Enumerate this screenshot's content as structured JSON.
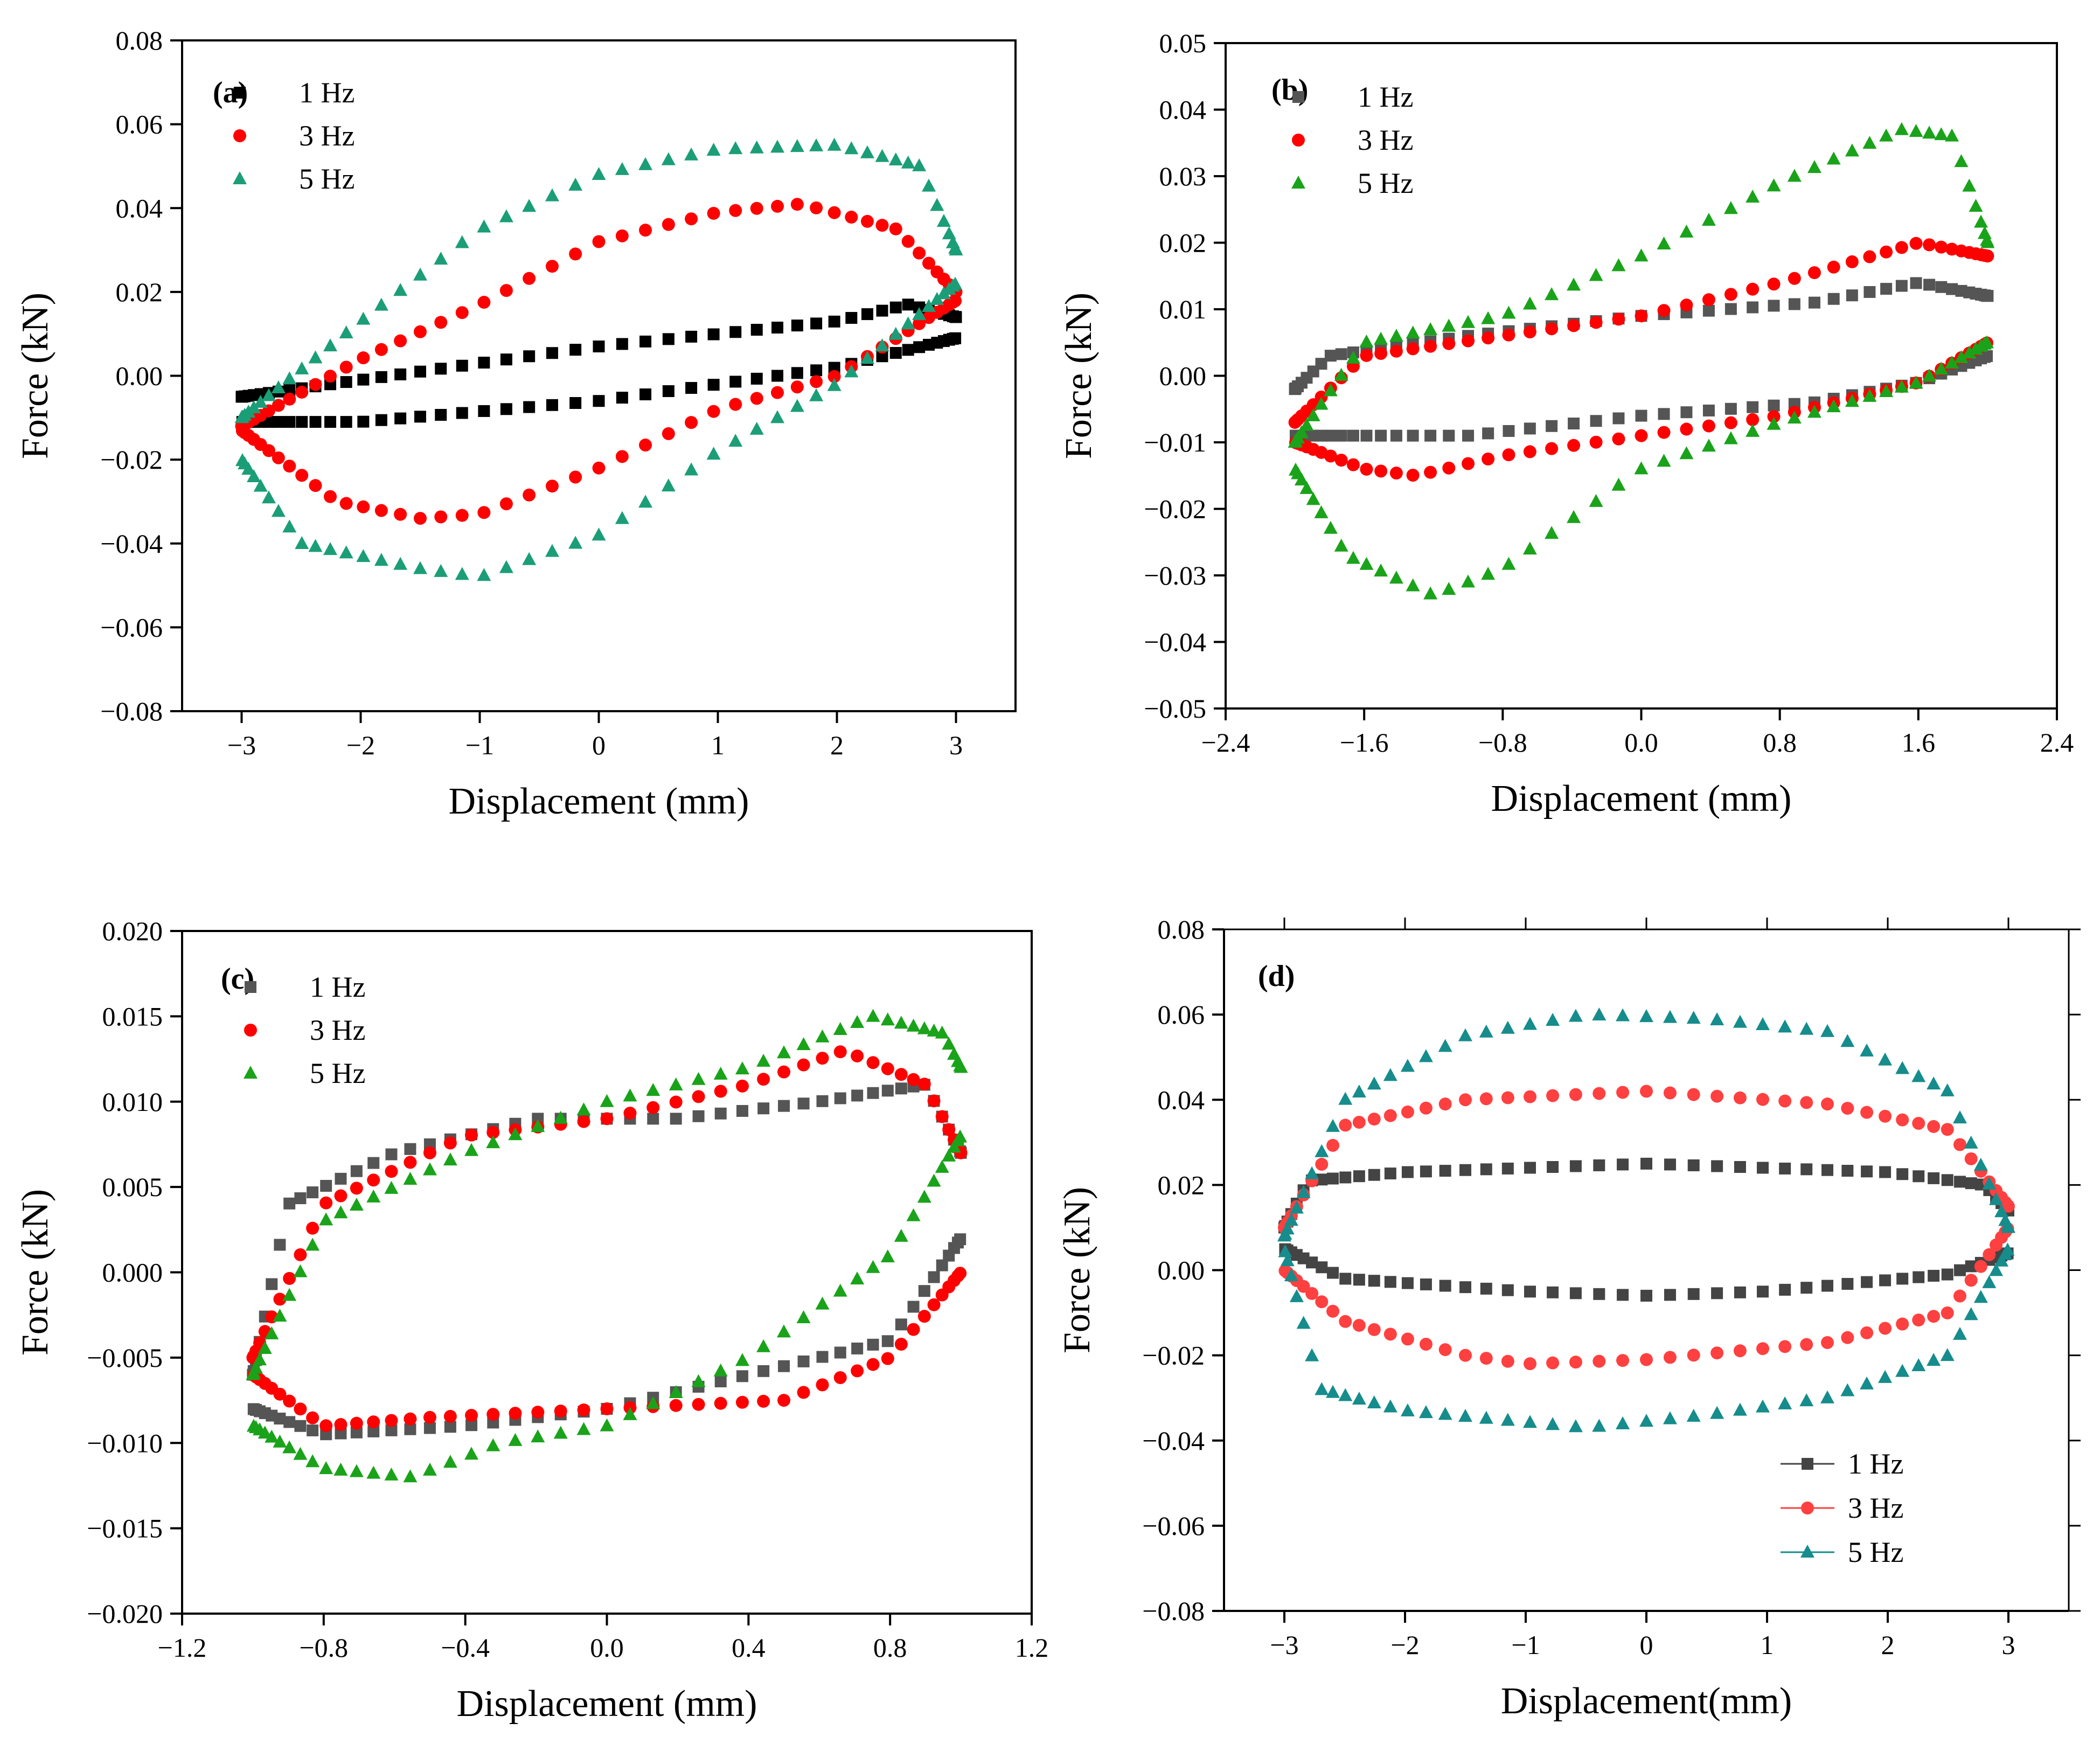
{
  "chart_data": [
    {
      "type": "scatter",
      "panel_label": "(a)",
      "xlabel": "Displacement (mm)",
      "ylabel": "Force (kN)",
      "xlim": [
        -3.5,
        3.5
      ],
      "ylim": [
        -0.08,
        0.08
      ],
      "xticks": [
        -3,
        -2,
        -1,
        0,
        1,
        2,
        3
      ],
      "yticks": [
        -0.08,
        -0.06,
        -0.04,
        -0.02,
        0.0,
        0.02,
        0.04,
        0.06,
        0.08
      ],
      "xtick_labels": [
        "−3",
        "−2",
        "−1",
        "0",
        "1",
        "2",
        "3"
      ],
      "ytick_labels": [
        "−0.08",
        "−0.06",
        "−0.04",
        "−0.02",
        "0.00",
        "0.02",
        "0.04",
        "0.06",
        "0.08"
      ],
      "legend_position": "top-left",
      "series": [
        {
          "name": "1 Hz",
          "color": "#000000",
          "marker": "square",
          "amplitude": 3,
          "top": [
            [
              -3,
              -0.005
            ],
            [
              0,
              0.007
            ],
            [
              2,
              0.013
            ],
            [
              2.6,
              0.017
            ],
            [
              3,
              0.014
            ]
          ],
          "bottom": [
            [
              -3,
              -0.011
            ],
            [
              -2,
              -0.011
            ],
            [
              0,
              -0.006
            ],
            [
              2,
              0.002
            ],
            [
              3,
              0.009
            ]
          ]
        },
        {
          "name": "3 Hz",
          "color": "#ff0000",
          "marker": "circle",
          "amplitude": 3,
          "top": [
            [
              -3,
              -0.012
            ],
            [
              -2,
              0.004
            ],
            [
              -1,
              0.017
            ],
            [
              0,
              0.032
            ],
            [
              1,
              0.039
            ],
            [
              1.7,
              0.041
            ],
            [
              2.5,
              0.035
            ],
            [
              3,
              0.02
            ]
          ],
          "bottom": [
            [
              -3,
              -0.013
            ],
            [
              -2.2,
              -0.03
            ],
            [
              -1.5,
              -0.034
            ],
            [
              -1,
              -0.033
            ],
            [
              0,
              -0.022
            ],
            [
              1,
              -0.008
            ],
            [
              2,
              0.0
            ],
            [
              3,
              0.018
            ]
          ]
        },
        {
          "name": "5 Hz",
          "color": "#1b9e77",
          "marker": "triangle",
          "amplitude": 3,
          "top": [
            [
              -3,
              -0.01
            ],
            [
              -2,
              0.013
            ],
            [
              -1,
              0.035
            ],
            [
              0,
              0.048
            ],
            [
              1,
              0.054
            ],
            [
              2,
              0.055
            ],
            [
              2.7,
              0.05
            ],
            [
              3,
              0.03
            ]
          ],
          "bottom": [
            [
              -3,
              -0.02
            ],
            [
              -2.5,
              -0.04
            ],
            [
              -1.5,
              -0.046
            ],
            [
              -1,
              -0.048
            ],
            [
              0,
              -0.038
            ],
            [
              1,
              -0.018
            ],
            [
              2,
              -0.002
            ],
            [
              3,
              0.022
            ]
          ]
        }
      ]
    },
    {
      "type": "scatter",
      "panel_label": "(b)",
      "xlabel": "Displacement (mm)",
      "ylabel": "Force (kN)",
      "xlim": [
        -2.4,
        2.4
      ],
      "ylim": [
        -0.05,
        0.05
      ],
      "xticks": [
        -2.4,
        -1.6,
        -0.8,
        0.0,
        0.8,
        1.6,
        2.4
      ],
      "yticks": [
        -0.05,
        -0.04,
        -0.03,
        -0.02,
        -0.01,
        0.0,
        0.01,
        0.02,
        0.03,
        0.04,
        0.05
      ],
      "xtick_labels": [
        "−2.4",
        "−1.6",
        "−0.8",
        "0.0",
        "0.8",
        "1.6",
        "2.4"
      ],
      "ytick_labels": [
        "−0.05",
        "−0.04",
        "−0.03",
        "−0.02",
        "−0.01",
        "0.00",
        "0.01",
        "0.02",
        "0.03",
        "0.04",
        "0.05"
      ],
      "legend_position": "top-left",
      "series": [
        {
          "name": "1 Hz",
          "color": "#555555",
          "marker": "square",
          "amplitude": 2,
          "top": [
            [
              -2,
              -0.002
            ],
            [
              -1.8,
              0.003
            ],
            [
              -1,
              0.006
            ],
            [
              0,
              0.009
            ],
            [
              1,
              0.011
            ],
            [
              1.6,
              0.014
            ],
            [
              2,
              0.012
            ]
          ],
          "bottom": [
            [
              -2,
              -0.009
            ],
            [
              -1,
              -0.009
            ],
            [
              0,
              -0.006
            ],
            [
              1,
              -0.004
            ],
            [
              1.6,
              -0.001
            ],
            [
              2,
              0.003
            ]
          ]
        },
        {
          "name": "3 Hz",
          "color": "#ff0000",
          "marker": "circle",
          "amplitude": 2,
          "top": [
            [
              -2,
              -0.007
            ],
            [
              -1.6,
              0.003
            ],
            [
              -0.8,
              0.006
            ],
            [
              0,
              0.009
            ],
            [
              0.8,
              0.014
            ],
            [
              1.6,
              0.02
            ],
            [
              2,
              0.018
            ]
          ],
          "bottom": [
            [
              -2,
              -0.01
            ],
            [
              -1.6,
              -0.014
            ],
            [
              -1.3,
              -0.015
            ],
            [
              -0.8,
              -0.012
            ],
            [
              0,
              -0.009
            ],
            [
              0.8,
              -0.006
            ],
            [
              1.6,
              -0.001
            ],
            [
              2,
              0.005
            ]
          ]
        },
        {
          "name": "5 Hz",
          "color": "#1aa31a",
          "marker": "triangle",
          "amplitude": 2,
          "top": [
            [
              -2,
              -0.01
            ],
            [
              -1.6,
              0.005
            ],
            [
              -0.8,
              0.009
            ],
            [
              0,
              0.018
            ],
            [
              0.8,
              0.029
            ],
            [
              1.5,
              0.037
            ],
            [
              1.8,
              0.036
            ],
            [
              2,
              0.02
            ]
          ],
          "bottom": [
            [
              -2,
              -0.014
            ],
            [
              -1.7,
              -0.027
            ],
            [
              -1.2,
              -0.033
            ],
            [
              -0.8,
              -0.029
            ],
            [
              0,
              -0.014
            ],
            [
              0.8,
              -0.007
            ],
            [
              1.6,
              -0.001
            ],
            [
              2,
              0.005
            ]
          ]
        }
      ]
    },
    {
      "type": "scatter",
      "panel_label": "(c)",
      "xlabel": "Displacement (mm)",
      "ylabel": "Force (kN)",
      "xlim": [
        -1.2,
        1.2
      ],
      "ylim": [
        -0.02,
        0.02
      ],
      "xticks": [
        -1.2,
        -0.8,
        -0.4,
        0.0,
        0.4,
        0.8,
        1.2
      ],
      "yticks": [
        -0.02,
        -0.015,
        -0.01,
        -0.005,
        0.0,
        0.005,
        0.01,
        0.015,
        0.02
      ],
      "xtick_labels": [
        "−1.2",
        "−0.8",
        "−0.4",
        "0.0",
        "0.4",
        "0.8",
        "1.2"
      ],
      "ytick_labels": [
        "−0.020",
        "−0.015",
        "−0.010",
        "−0.005",
        "0.000",
        "0.005",
        "0.010",
        "0.015",
        "0.020"
      ],
      "legend_position": "top-left",
      "series": [
        {
          "name": "1 Hz",
          "color": "#555555",
          "marker": "square",
          "amplitude": 1,
          "top": [
            [
              -1,
              -0.006
            ],
            [
              -0.9,
              0.004
            ],
            [
              -0.6,
              0.007
            ],
            [
              -0.2,
              0.009
            ],
            [
              0.2,
              0.009
            ],
            [
              0.6,
              0.01
            ],
            [
              0.9,
              0.011
            ],
            [
              1,
              0.007
            ]
          ],
          "bottom": [
            [
              -1,
              -0.008
            ],
            [
              -0.8,
              -0.0095
            ],
            [
              -0.4,
              -0.009
            ],
            [
              0,
              -0.008
            ],
            [
              0.4,
              -0.006
            ],
            [
              0.8,
              -0.004
            ],
            [
              1,
              0.002
            ]
          ]
        },
        {
          "name": "3 Hz",
          "color": "#ff0000",
          "marker": "circle",
          "amplitude": 1,
          "top": [
            [
              -1,
              -0.005
            ],
            [
              -0.8,
              0.004
            ],
            [
              -0.4,
              0.008
            ],
            [
              0,
              0.009
            ],
            [
              0.4,
              0.011
            ],
            [
              0.67,
              0.013
            ],
            [
              0.9,
              0.011
            ],
            [
              1,
              0.007
            ]
          ],
          "bottom": [
            [
              -1,
              -0.006
            ],
            [
              -0.8,
              -0.009
            ],
            [
              -0.5,
              -0.0085
            ],
            [
              0,
              -0.008
            ],
            [
              0.5,
              -0.0075
            ],
            [
              0.8,
              -0.005
            ],
            [
              1,
              0.0
            ]
          ]
        },
        {
          "name": "5 Hz",
          "color": "#1aa31a",
          "marker": "triangle",
          "amplitude": 1,
          "top": [
            [
              -1,
              -0.006
            ],
            [
              -0.8,
              0.003
            ],
            [
              -0.4,
              0.007
            ],
            [
              0,
              0.01
            ],
            [
              0.4,
              0.012
            ],
            [
              0.75,
              0.015
            ],
            [
              0.95,
              0.014
            ],
            [
              1,
              0.012
            ]
          ],
          "bottom": [
            [
              -1,
              -0.009
            ],
            [
              -0.8,
              -0.0115
            ],
            [
              -0.55,
              -0.012
            ],
            [
              -0.3,
              -0.01
            ],
            [
              0,
              -0.009
            ],
            [
              0.4,
              -0.005
            ],
            [
              0.8,
              0.001
            ],
            [
              1,
              0.008
            ]
          ]
        }
      ]
    },
    {
      "type": "scatter",
      "panel_label": "(d)",
      "xlabel": "Displacement(mm)",
      "ylabel": "Force (kN)",
      "xlim": [
        -3.5,
        3.5
      ],
      "ylim": [
        -0.08,
        0.08
      ],
      "xticks": [
        -3,
        -2,
        -1,
        0,
        1,
        2,
        3
      ],
      "yticks": [
        -0.08,
        -0.06,
        -0.04,
        -0.02,
        0.0,
        0.02,
        0.04,
        0.06,
        0.08
      ],
      "xtick_labels": [
        "−3",
        "−2",
        "−1",
        "0",
        "1",
        "2",
        "3"
      ],
      "ytick_labels": [
        "−0.08",
        "−0.06",
        "−0.04",
        "−0.02",
        "0.00",
        "0.02",
        "0.04",
        "0.06",
        "0.08"
      ],
      "legend_position": "bottom-right",
      "series": [
        {
          "name": "1 Hz",
          "color": "#444444",
          "marker": "square",
          "amplitude": 3,
          "top": [
            [
              -3,
              0.01
            ],
            [
              -2.8,
              0.021
            ],
            [
              -2,
              0.023
            ],
            [
              0,
              0.025
            ],
            [
              2,
              0.023
            ],
            [
              2.8,
              0.02
            ],
            [
              3,
              0.014
            ]
          ],
          "bottom": [
            [
              -3,
              0.005
            ],
            [
              -2.5,
              -0.002
            ],
            [
              -1,
              -0.005
            ],
            [
              0,
              -0.006
            ],
            [
              1,
              -0.005
            ],
            [
              2.5,
              -0.001
            ],
            [
              3,
              0.004
            ]
          ]
        },
        {
          "name": "3 Hz",
          "color": "#ff4040",
          "marker": "circle",
          "amplitude": 3,
          "top": [
            [
              -3,
              0.01
            ],
            [
              -2.5,
              0.034
            ],
            [
              -1.5,
              0.04
            ],
            [
              0,
              0.042
            ],
            [
              1.5,
              0.039
            ],
            [
              2.5,
              0.033
            ],
            [
              3,
              0.015
            ]
          ],
          "bottom": [
            [
              -3,
              0.0
            ],
            [
              -2.5,
              -0.012
            ],
            [
              -1.5,
              -0.02
            ],
            [
              -1,
              -0.022
            ],
            [
              0,
              -0.021
            ],
            [
              1.5,
              -0.017
            ],
            [
              2.5,
              -0.01
            ],
            [
              3,
              0.01
            ]
          ]
        },
        {
          "name": "5 Hz",
          "color": "#168c8c",
          "marker": "triangle",
          "amplitude": 3,
          "top": [
            [
              -3,
              0.008
            ],
            [
              -2.5,
              0.04
            ],
            [
              -1.5,
              0.055
            ],
            [
              -0.5,
              0.06
            ],
            [
              0.5,
              0.059
            ],
            [
              1.5,
              0.056
            ],
            [
              2.5,
              0.042
            ],
            [
              3,
              0.01
            ]
          ],
          "bottom": [
            [
              -3,
              0.005
            ],
            [
              -2.7,
              -0.028
            ],
            [
              -2,
              -0.033
            ],
            [
              -0.5,
              -0.037
            ],
            [
              0.5,
              -0.034
            ],
            [
              1.5,
              -0.03
            ],
            [
              2.5,
              -0.02
            ],
            [
              3,
              0.005
            ]
          ]
        }
      ]
    }
  ]
}
